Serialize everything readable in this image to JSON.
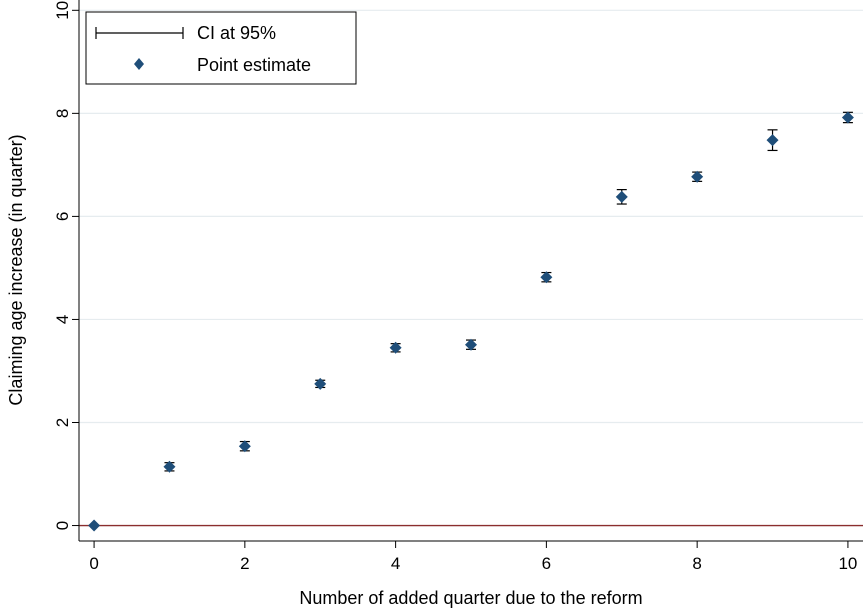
{
  "chart_data": {
    "type": "scatter",
    "xlabel": "Number of added quarter due to the reform",
    "ylabel": "Claiming age increase (in quarter)",
    "xlim": [
      -0.2,
      10.2
    ],
    "ylim": [
      -0.3,
      10.2
    ],
    "xticks": [
      "0",
      "2",
      "4",
      "6",
      "8",
      "10"
    ],
    "yticks": [
      "0",
      "2",
      "4",
      "6",
      "8",
      "10"
    ],
    "grid": true,
    "legend_position": "top-left",
    "reference_line": {
      "y": 0,
      "color": "#8b2e2e"
    },
    "series": [
      {
        "name": "Point estimate",
        "marker": "diamond",
        "color": "#1f4e79",
        "x": [
          0,
          1,
          2,
          3,
          4,
          5,
          6,
          7,
          8,
          9,
          10
        ],
        "y": [
          0.0,
          1.14,
          1.54,
          2.75,
          3.45,
          3.51,
          4.82,
          6.38,
          6.77,
          7.48,
          7.92
        ]
      },
      {
        "name": "CI at 95%",
        "type": "errorbar",
        "color": "#000000",
        "lower": [
          0.0,
          1.06,
          1.45,
          2.68,
          3.37,
          3.42,
          4.73,
          6.24,
          6.68,
          7.28,
          7.82
        ],
        "upper": [
          0.0,
          1.22,
          1.63,
          2.82,
          3.53,
          3.6,
          4.91,
          6.52,
          6.86,
          7.68,
          8.02
        ]
      }
    ]
  }
}
